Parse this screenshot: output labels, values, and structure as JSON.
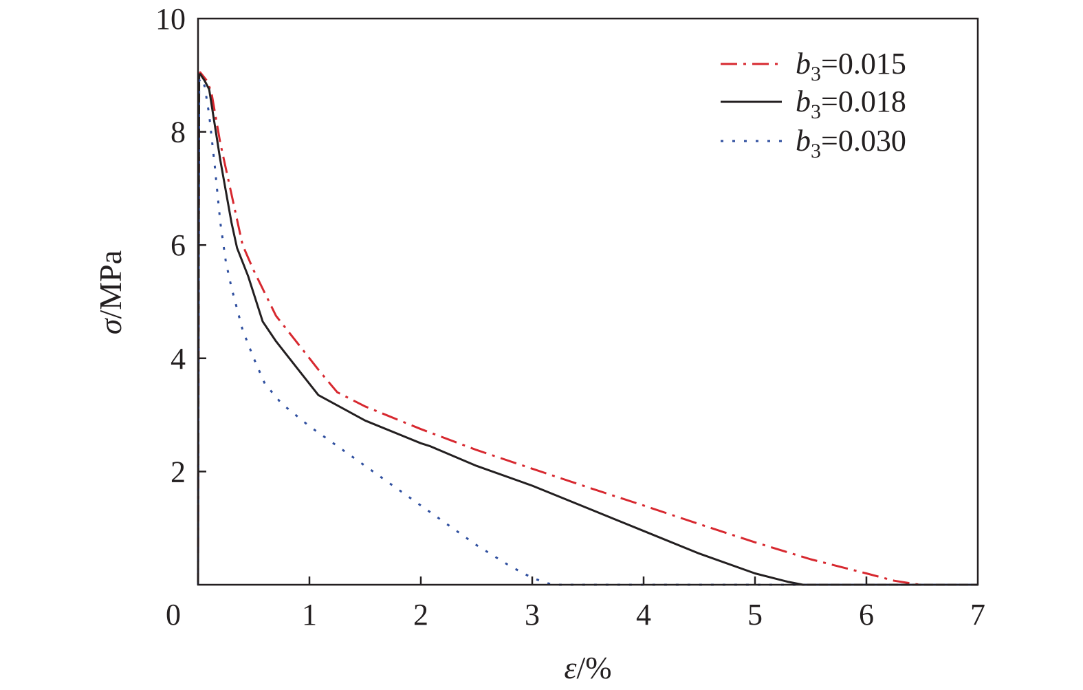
{
  "chart_data": {
    "type": "line",
    "title": "",
    "xlabel": {
      "symbol": "ε",
      "unit": "/%"
    },
    "ylabel": {
      "symbol": "σ",
      "unit": "/MPa"
    },
    "xlim": [
      0,
      7
    ],
    "ylim": [
      0,
      10
    ],
    "x_ticks": [
      0,
      1,
      2,
      3,
      4,
      5,
      6,
      7
    ],
    "y_ticks": [
      0,
      2,
      4,
      6,
      8,
      10
    ],
    "x_tick_labels": [
      "0",
      "1",
      "2",
      "3",
      "4",
      "5",
      "6",
      "7"
    ],
    "y_tick_labels": [
      "2",
      "4",
      "6",
      "8",
      "10"
    ],
    "grid": false,
    "legend_position": "top-right",
    "series": [
      {
        "label_prefix": "b",
        "label_subscript": "3",
        "label_value": "=0.015",
        "color": "#d7282f",
        "style": "dashdot",
        "x": [
          0,
          0.01,
          0.02,
          0.04,
          0.08,
          0.12,
          0.2,
          0.3,
          0.4,
          0.5,
          0.7,
          0.9,
          1.1,
          1.25,
          1.5,
          2.0,
          2.5,
          3.0,
          3.5,
          4.0,
          4.5,
          5.0,
          5.5,
          6.0,
          6.25,
          6.45,
          6.5,
          7.0
        ],
        "y": [
          0,
          9.0,
          9.05,
          9.0,
          8.9,
          8.7,
          7.8,
          6.9,
          6.0,
          5.55,
          4.75,
          4.25,
          3.75,
          3.4,
          3.15,
          2.75,
          2.38,
          2.05,
          1.72,
          1.4,
          1.07,
          0.75,
          0.45,
          0.2,
          0.07,
          0.01,
          0,
          0
        ]
      },
      {
        "label_prefix": "b",
        "label_subscript": "3",
        "label_value": "=0.018",
        "color": "#231f20",
        "style": "solid",
        "x": [
          0,
          0.01,
          0.02,
          0.06,
          0.1,
          0.2,
          0.3,
          0.35,
          0.45,
          0.58,
          0.7,
          0.9,
          1.08,
          1.5,
          2.0,
          2.08,
          2.5,
          3.0,
          3.5,
          4.0,
          4.5,
          5.0,
          5.3,
          5.43,
          5.45,
          7.0
        ],
        "y": [
          0,
          9.0,
          9.02,
          8.9,
          8.75,
          7.5,
          6.4,
          5.95,
          5.45,
          4.65,
          4.3,
          3.8,
          3.35,
          2.9,
          2.5,
          2.45,
          2.1,
          1.75,
          1.35,
          0.95,
          0.55,
          0.2,
          0.05,
          0.0,
          0,
          0
        ]
      },
      {
        "label_prefix": "b",
        "label_subscript": "3",
        "label_value": "=0.030",
        "color": "#2f4f9f",
        "style": "dotted",
        "x": [
          0,
          0.01,
          0.03,
          0.06,
          0.1,
          0.15,
          0.2,
          0.25,
          0.3,
          0.4,
          0.5,
          0.6,
          0.75,
          1.0,
          1.25,
          1.5,
          2.0,
          2.5,
          2.8,
          3.0,
          3.15,
          3.2,
          3.3,
          7.0
        ],
        "y": [
          0,
          8.9,
          8.95,
          8.8,
          8.3,
          7.4,
          6.4,
          5.7,
          5.25,
          4.5,
          4.0,
          3.55,
          3.2,
          2.8,
          2.45,
          2.1,
          1.4,
          0.7,
          0.33,
          0.12,
          0.02,
          0,
          0,
          0
        ]
      }
    ]
  }
}
